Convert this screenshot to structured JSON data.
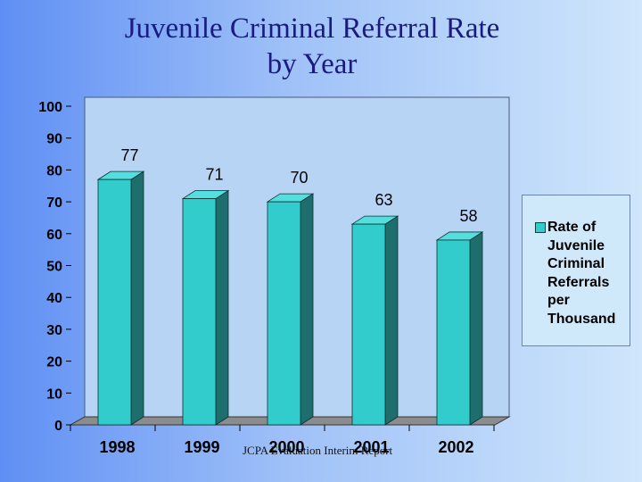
{
  "slide": {
    "title_line1": "Juvenile Criminal Referral Rate",
    "title_line2": "by Year",
    "footer": "JCPA Evaluation Interim Report"
  },
  "chart_data": {
    "type": "bar",
    "title": "",
    "xlabel": "",
    "ylabel": "",
    "categories": [
      "1998",
      "1999",
      "2000",
      "2001",
      "2002"
    ],
    "series": [
      {
        "name": "Rate of Juvenile Criminal Referrals per Thousand",
        "values": [
          77,
          71,
          70,
          63,
          58
        ]
      }
    ],
    "ylim": [
      0,
      100
    ],
    "yticks": [
      0,
      10,
      20,
      30,
      40,
      50,
      60,
      70,
      80,
      90,
      100
    ],
    "grid": false,
    "legend_position": "right",
    "data_labels": true,
    "style": "3d-bar",
    "bar_color": "#33cccc",
    "bar_side_color": "#1e6e6e",
    "floor_color": "#8c8c8c"
  }
}
